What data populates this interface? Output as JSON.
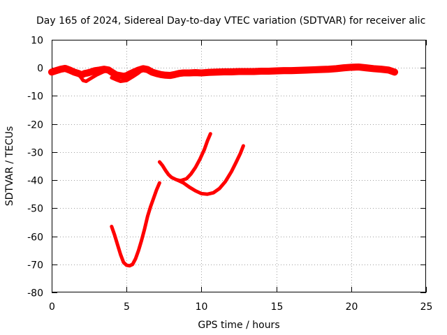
{
  "chart_data": {
    "type": "line",
    "title": "Day 165 of 2024, Sidereal Day-to-day VTEC variation (SDTVAR) for receiver alic",
    "xlabel": "GPS time / hours",
    "ylabel": "SDTVAR / TECUs",
    "xlim": [
      0,
      25
    ],
    "ylim": [
      -80,
      10
    ],
    "x_ticks": [
      0,
      5,
      10,
      15,
      20,
      25
    ],
    "y_ticks": [
      -80,
      -70,
      -60,
      -50,
      -40,
      -30,
      -20,
      -10,
      0,
      10
    ],
    "x_tick_labels": [
      "0",
      "5",
      "10",
      "15",
      "20",
      "25"
    ],
    "y_tick_labels": [
      "-80",
      "-70",
      "-60",
      "-50",
      "-40",
      "-30",
      "-20",
      "-10",
      "0",
      "10"
    ],
    "grid": true,
    "legend": "none",
    "color": "#ff0000",
    "series": [
      {
        "band": 2.5,
        "x": [
          0,
          0.3,
          0.6,
          0.9,
          1.2,
          1.5,
          1.8,
          2.0,
          2.2,
          2.4,
          2.6,
          2.9,
          3.2,
          3.5,
          3.8,
          4.0,
          4.3,
          4.6,
          4.8,
          5.0,
          5.2,
          5.5,
          5.8,
          6.1,
          6.4,
          6.7,
          7.0,
          7.3,
          7.6,
          7.9,
          8.2,
          8.5,
          8.8,
          9.2,
          9.6,
          10.0,
          10.5,
          11.0,
          11.5,
          12.0,
          12.5,
          13.0,
          13.5,
          14.0,
          14.5,
          15.0,
          15.5,
          16.0,
          16.5,
          17.0,
          17.5,
          18.0,
          18.5,
          19.0,
          19.5,
          20.0,
          20.5,
          21.0,
          21.5,
          22.0,
          22.5,
          22.9
        ],
        "values": [
          -1.5,
          -1.0,
          -0.5,
          -0.2,
          -0.8,
          -1.5,
          -2.0,
          -2.5,
          -2.0,
          -1.8,
          -1.5,
          -1.0,
          -0.8,
          -0.5,
          -0.8,
          -1.5,
          -2.5,
          -2.8,
          -3.0,
          -2.8,
          -2.2,
          -1.5,
          -0.8,
          -0.3,
          -0.6,
          -1.5,
          -2.0,
          -2.4,
          -2.6,
          -2.7,
          -2.4,
          -2.0,
          -1.8,
          -1.8,
          -1.7,
          -1.8,
          -1.6,
          -1.5,
          -1.4,
          -1.4,
          -1.3,
          -1.3,
          -1.3,
          -1.2,
          -1.2,
          -1.1,
          -1.0,
          -1.0,
          -0.9,
          -0.8,
          -0.7,
          -0.6,
          -0.5,
          -0.3,
          0.0,
          0.2,
          0.3,
          0.0,
          -0.3,
          -0.5,
          -0.8,
          -1.5
        ]
      },
      {
        "band": 0,
        "x": [
          1.9,
          2.1,
          2.3,
          2.6,
          3.0,
          3.4,
          3.7
        ],
        "values": [
          -3.0,
          -4.5,
          -4.8,
          -3.8,
          -2.5,
          -1.5,
          -1.0
        ]
      },
      {
        "band": 0,
        "x": [
          4.0,
          4.3,
          4.6,
          5.0,
          5.4,
          5.8,
          6.1
        ],
        "values": [
          -3.5,
          -4.2,
          -4.8,
          -4.5,
          -3.2,
          -1.8,
          -0.5
        ]
      },
      {
        "band": 0,
        "x": [
          4.0,
          4.2,
          4.4,
          4.6,
          4.8,
          5.0,
          5.2,
          5.4,
          5.6,
          5.8,
          6.0,
          6.2,
          6.4,
          6.6,
          6.8,
          7.0,
          7.2
        ],
        "values": [
          -56.5,
          -59.5,
          -63.0,
          -66.5,
          -69.3,
          -70.3,
          -70.5,
          -70.0,
          -68.0,
          -65.0,
          -61.5,
          -57.5,
          -53.0,
          -49.5,
          -46.5,
          -43.5,
          -41.0
        ]
      },
      {
        "band": 0,
        "x": [
          7.2,
          7.4,
          7.6,
          7.8,
          8.0,
          8.3,
          8.6,
          9.0,
          9.3,
          9.6,
          9.9,
          10.2,
          10.4,
          10.6
        ],
        "values": [
          -33.5,
          -34.8,
          -36.5,
          -38.0,
          -39.0,
          -39.8,
          -40.2,
          -39.5,
          -37.8,
          -35.5,
          -32.5,
          -29.0,
          -26.0,
          -23.5
        ]
      },
      {
        "band": 0,
        "x": [
          8.4,
          8.8,
          9.2,
          9.6,
          10.0,
          10.4,
          10.8,
          11.2,
          11.6,
          12.0,
          12.3,
          12.6,
          12.8
        ],
        "values": [
          -40.0,
          -41.0,
          -42.5,
          -43.8,
          -44.8,
          -45.0,
          -44.5,
          -43.0,
          -40.5,
          -37.0,
          -33.8,
          -30.5,
          -27.8
        ]
      }
    ]
  }
}
